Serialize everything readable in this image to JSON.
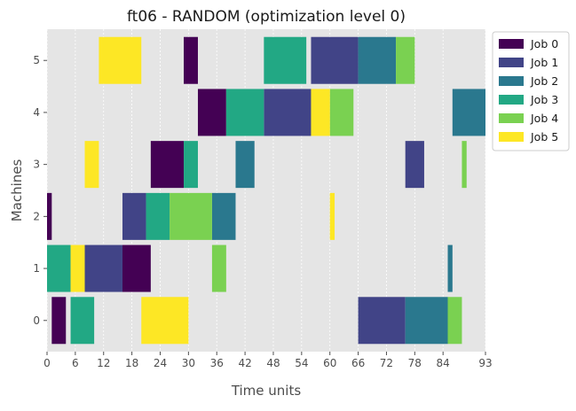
{
  "chart_data": {
    "type": "gantt",
    "title": "ft06 - RANDOM (optimization level 0)",
    "xlabel": "Time units",
    "ylabel": "Machines",
    "xlim": [
      0,
      93
    ],
    "ylim": [
      -0.6,
      5.6
    ],
    "xticks": [
      0,
      6,
      12,
      18,
      24,
      30,
      36,
      42,
      48,
      54,
      60,
      66,
      72,
      78,
      84,
      93
    ],
    "yticks": [
      0,
      1,
      2,
      3,
      4,
      5
    ],
    "grid": true,
    "legend_position": "outside-top-right",
    "series": [
      {
        "name": "Job 0",
        "color": "#440154",
        "tasks": [
          {
            "machine": 0,
            "start": 1,
            "end": 4
          },
          {
            "machine": 1,
            "start": 16,
            "end": 22
          },
          {
            "machine": 2,
            "start": 0,
            "end": 1
          },
          {
            "machine": 3,
            "start": 22,
            "end": 29
          },
          {
            "machine": 4,
            "start": 32,
            "end": 38
          },
          {
            "machine": 5,
            "start": 29,
            "end": 32
          }
        ]
      },
      {
        "name": "Job 1",
        "color": "#414487",
        "tasks": [
          {
            "machine": 0,
            "start": 66,
            "end": 76
          },
          {
            "machine": 1,
            "start": 8,
            "end": 16
          },
          {
            "machine": 2,
            "start": 16,
            "end": 21
          },
          {
            "machine": 3,
            "start": 76,
            "end": 80
          },
          {
            "machine": 4,
            "start": 46,
            "end": 56
          },
          {
            "machine": 5,
            "start": 56,
            "end": 66
          }
        ]
      },
      {
        "name": "Job 2",
        "color": "#2a788e",
        "tasks": [
          {
            "machine": 0,
            "start": 76,
            "end": 85
          },
          {
            "machine": 1,
            "start": 85,
            "end": 86
          },
          {
            "machine": 2,
            "start": 35,
            "end": 40
          },
          {
            "machine": 3,
            "start": 40,
            "end": 44
          },
          {
            "machine": 4,
            "start": 86,
            "end": 93
          },
          {
            "machine": 5,
            "start": 66,
            "end": 74
          }
        ]
      },
      {
        "name": "Job 3",
        "color": "#22a884",
        "tasks": [
          {
            "machine": 0,
            "start": 5,
            "end": 10
          },
          {
            "machine": 1,
            "start": 0,
            "end": 5
          },
          {
            "machine": 2,
            "start": 21,
            "end": 26
          },
          {
            "machine": 3,
            "start": 29,
            "end": 32
          },
          {
            "machine": 4,
            "start": 38,
            "end": 46
          },
          {
            "machine": 5,
            "start": 46,
            "end": 55
          }
        ]
      },
      {
        "name": "Job 4",
        "color": "#7ad151",
        "tasks": [
          {
            "machine": 0,
            "start": 85,
            "end": 88
          },
          {
            "machine": 1,
            "start": 35,
            "end": 38
          },
          {
            "machine": 2,
            "start": 26,
            "end": 35
          },
          {
            "machine": 3,
            "start": 88,
            "end": 89
          },
          {
            "machine": 4,
            "start": 60,
            "end": 65
          },
          {
            "machine": 5,
            "start": 74,
            "end": 78
          }
        ]
      },
      {
        "name": "Job 5",
        "color": "#fde725",
        "tasks": [
          {
            "machine": 0,
            "start": 20,
            "end": 30
          },
          {
            "machine": 1,
            "start": 5,
            "end": 8
          },
          {
            "machine": 2,
            "start": 60,
            "end": 61
          },
          {
            "machine": 3,
            "start": 8,
            "end": 11
          },
          {
            "machine": 4,
            "start": 56,
            "end": 60
          },
          {
            "machine": 5,
            "start": 11,
            "end": 20
          }
        ]
      }
    ]
  }
}
